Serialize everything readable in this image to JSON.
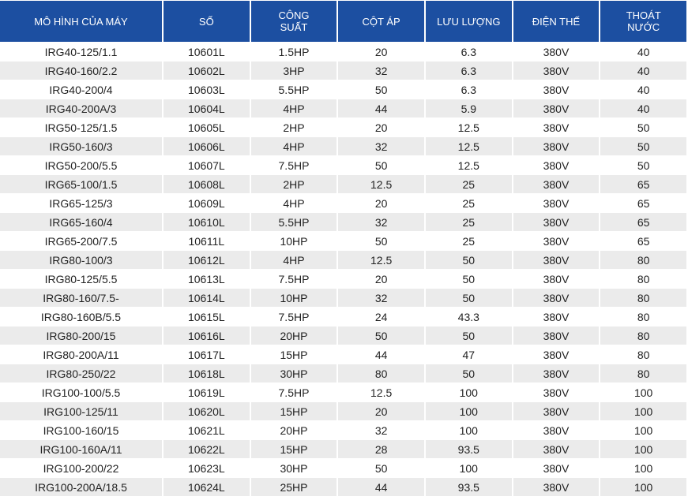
{
  "table": {
    "header": [
      "MÔ HÌNH CỦA MÁY",
      "SỐ",
      "CÔNG SUẤT",
      "CỘT ÁP",
      "LƯU LƯỢNG",
      "ĐIỆN THẾ",
      "THOÁT NƯỚC"
    ],
    "rows": [
      [
        "IRG40-125/1.1",
        "10601L",
        "1.5HP",
        "20",
        "6.3",
        "380V",
        "40"
      ],
      [
        "IRG40-160/2.2",
        "10602L",
        "3HP",
        "32",
        "6.3",
        "380V",
        "40"
      ],
      [
        "IRG40-200/4",
        "10603L",
        "5.5HP",
        "50",
        "6.3",
        "380V",
        "40"
      ],
      [
        "IRG40-200A/3",
        "10604L",
        "4HP",
        "44",
        "5.9",
        "380V",
        "40"
      ],
      [
        "IRG50-125/1.5",
        "10605L",
        "2HP",
        "20",
        "12.5",
        "380V",
        "50"
      ],
      [
        "IRG50-160/3",
        "10606L",
        "4HP",
        "32",
        "12.5",
        "380V",
        "50"
      ],
      [
        "IRG50-200/5.5",
        "10607L",
        "7.5HP",
        "50",
        "12.5",
        "380V",
        "50"
      ],
      [
        "IRG65-100/1.5",
        "10608L",
        "2HP",
        "12.5",
        "25",
        "380V",
        "65"
      ],
      [
        "IRG65-125/3",
        "10609L",
        "4HP",
        "20",
        "25",
        "380V",
        "65"
      ],
      [
        "IRG65-160/4",
        "10610L",
        "5.5HP",
        "32",
        "25",
        "380V",
        "65"
      ],
      [
        "IRG65-200/7.5",
        "10611L",
        "10HP",
        "50",
        "25",
        "380V",
        "65"
      ],
      [
        "IRG80-100/3",
        "10612L",
        "4HP",
        "12.5",
        "50",
        "380V",
        "80"
      ],
      [
        "IRG80-125/5.5",
        "10613L",
        "7.5HP",
        "20",
        "50",
        "380V",
        "80"
      ],
      [
        "IRG80-160/7.5-",
        "10614L",
        "10HP",
        "32",
        "50",
        "380V",
        "80"
      ],
      [
        "IRG80-160B/5.5",
        "10615L",
        "7.5HP",
        "24",
        "43.3",
        "380V",
        "80"
      ],
      [
        "IRG80-200/15",
        "10616L",
        "20HP",
        "50",
        "50",
        "380V",
        "80"
      ],
      [
        "IRG80-200A/11",
        "10617L",
        "15HP",
        "44",
        "47",
        "380V",
        "80"
      ],
      [
        "IRG80-250/22",
        "10618L",
        "30HP",
        "80",
        "50",
        "380V",
        "80"
      ],
      [
        "IRG100-100/5.5",
        "10619L",
        "7.5HP",
        "12.5",
        "100",
        "380V",
        "100"
      ],
      [
        "IRG100-125/11",
        "10620L",
        "15HP",
        "20",
        "100",
        "380V",
        "100"
      ],
      [
        "IRG100-160/15",
        "10621L",
        "20HP",
        "32",
        "100",
        "380V",
        "100"
      ],
      [
        "IRG100-160A/11",
        "10622L",
        "15HP",
        "28",
        "93.5",
        "380V",
        "100"
      ],
      [
        "IRG100-200/22",
        "10623L",
        "30HP",
        "50",
        "100",
        "380V",
        "100"
      ],
      [
        "IRG100-200A/18.5",
        "10624L",
        "25HP",
        "44",
        "93.5",
        "380V",
        "100"
      ]
    ]
  }
}
